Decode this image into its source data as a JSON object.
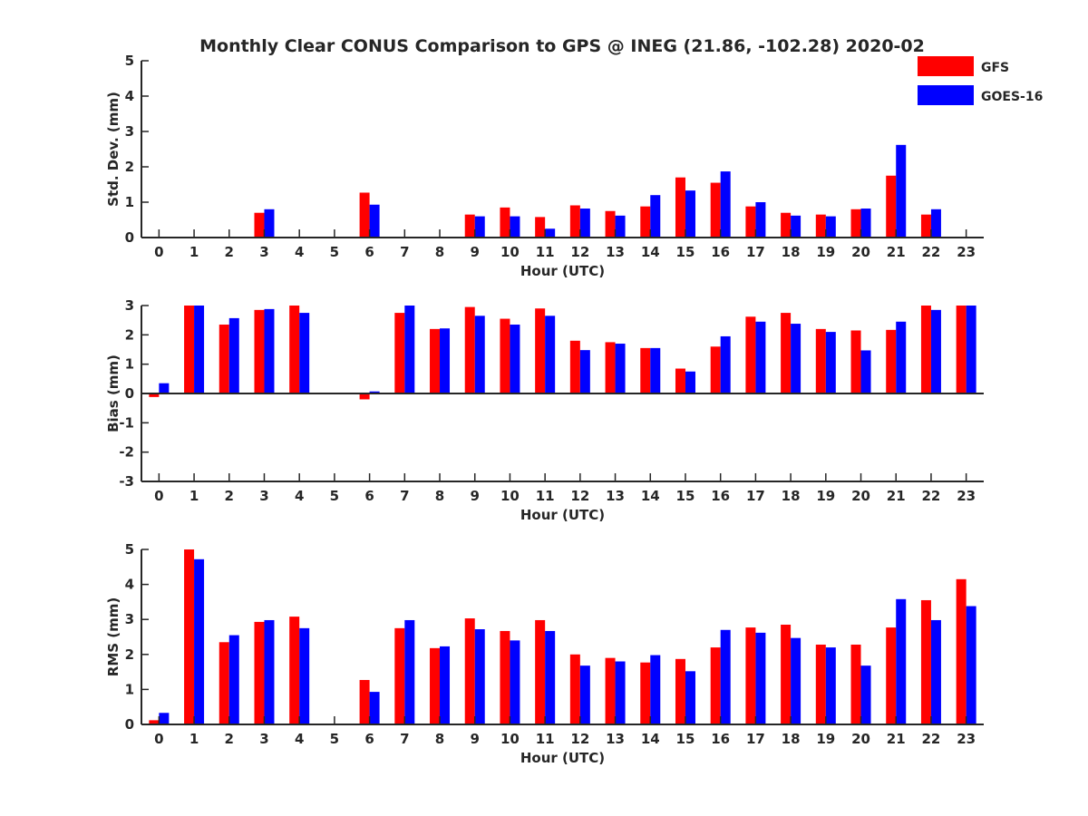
{
  "title": "Monthly Clear CONUS Comparison to GPS @ INEG (21.86, -102.28) 2020-02",
  "colors": {
    "GFS": "#ff0000",
    "GOES-16": "#0000ff",
    "axis": "#262626"
  },
  "legend": [
    "GFS",
    "GOES-16"
  ],
  "chart_data": [
    {
      "type": "bar",
      "ylabel": "Std. Dev. (mm)",
      "xlabel": "Hour (UTC)",
      "ylim": [
        0,
        5
      ],
      "yticks": [
        "0",
        "1",
        "2",
        "3",
        "4",
        "5"
      ],
      "categories": [
        "0",
        "1",
        "2",
        "3",
        "4",
        "5",
        "6",
        "7",
        "8",
        "9",
        "10",
        "11",
        "12",
        "13",
        "14",
        "15",
        "16",
        "17",
        "18",
        "19",
        "20",
        "21",
        "22",
        "23"
      ],
      "series": [
        {
          "name": "GFS",
          "values": [
            0,
            0,
            0,
            0.7,
            0,
            0,
            1.27,
            0,
            0,
            0.65,
            0.85,
            0.58,
            0.91,
            0.75,
            0.88,
            1.7,
            1.55,
            0.88,
            0.7,
            0.65,
            0.8,
            1.75,
            0.65,
            0
          ]
        },
        {
          "name": "GOES-16",
          "values": [
            0,
            0,
            0,
            0.8,
            0,
            0,
            0.93,
            0,
            0,
            0.6,
            0.6,
            0.25,
            0.82,
            0.62,
            1.2,
            1.33,
            1.87,
            1.0,
            0.62,
            0.6,
            0.82,
            2.62,
            0.8,
            0
          ]
        }
      ]
    },
    {
      "type": "bar",
      "ylabel": "Bias (mm)",
      "xlabel": "Hour (UTC)",
      "ylim": [
        -3,
        3
      ],
      "yticks": [
        "-3",
        "-2",
        "-1",
        "0",
        "1",
        "2",
        "3"
      ],
      "categories": [
        "0",
        "1",
        "2",
        "3",
        "4",
        "5",
        "6",
        "7",
        "8",
        "9",
        "10",
        "11",
        "12",
        "13",
        "14",
        "15",
        "16",
        "17",
        "18",
        "19",
        "20",
        "21",
        "22",
        "23"
      ],
      "series": [
        {
          "name": "GFS",
          "values": [
            -0.12,
            3.0,
            2.35,
            2.85,
            3.0,
            0,
            -0.2,
            2.75,
            2.2,
            2.95,
            2.55,
            2.9,
            1.8,
            1.75,
            1.55,
            0.85,
            1.6,
            2.62,
            2.75,
            2.2,
            2.15,
            2.17,
            3.0,
            3.0
          ]
        },
        {
          "name": "GOES-16",
          "values": [
            0.35,
            3.0,
            2.57,
            2.88,
            2.75,
            0,
            0.07,
            3.0,
            2.22,
            2.65,
            2.35,
            2.65,
            1.48,
            1.7,
            1.55,
            0.75,
            1.95,
            2.45,
            2.38,
            2.1,
            1.47,
            2.45,
            2.85,
            3.0
          ]
        }
      ]
    },
    {
      "type": "bar",
      "ylabel": "RMS (mm)",
      "xlabel": "Hour (UTC)",
      "ylim": [
        0,
        5
      ],
      "yticks": [
        "0",
        "1",
        "2",
        "3",
        "4",
        "5"
      ],
      "categories": [
        "0",
        "1",
        "2",
        "3",
        "4",
        "5",
        "6",
        "7",
        "8",
        "9",
        "10",
        "11",
        "12",
        "13",
        "14",
        "15",
        "16",
        "17",
        "18",
        "19",
        "20",
        "21",
        "22",
        "23"
      ],
      "series": [
        {
          "name": "GFS",
          "values": [
            0.12,
            5.0,
            2.35,
            2.93,
            3.08,
            0,
            1.27,
            2.75,
            2.18,
            3.03,
            2.67,
            2.98,
            2.0,
            1.9,
            1.77,
            1.87,
            2.2,
            2.77,
            2.85,
            2.28,
            2.28,
            2.77,
            3.55,
            4.15
          ]
        },
        {
          "name": "GOES-16",
          "values": [
            0.33,
            4.72,
            2.55,
            2.98,
            2.75,
            0,
            0.93,
            2.98,
            2.23,
            2.72,
            2.4,
            2.67,
            1.68,
            1.8,
            1.98,
            1.52,
            2.7,
            2.62,
            2.47,
            2.2,
            1.68,
            3.58,
            2.98,
            3.38
          ]
        }
      ]
    }
  ]
}
